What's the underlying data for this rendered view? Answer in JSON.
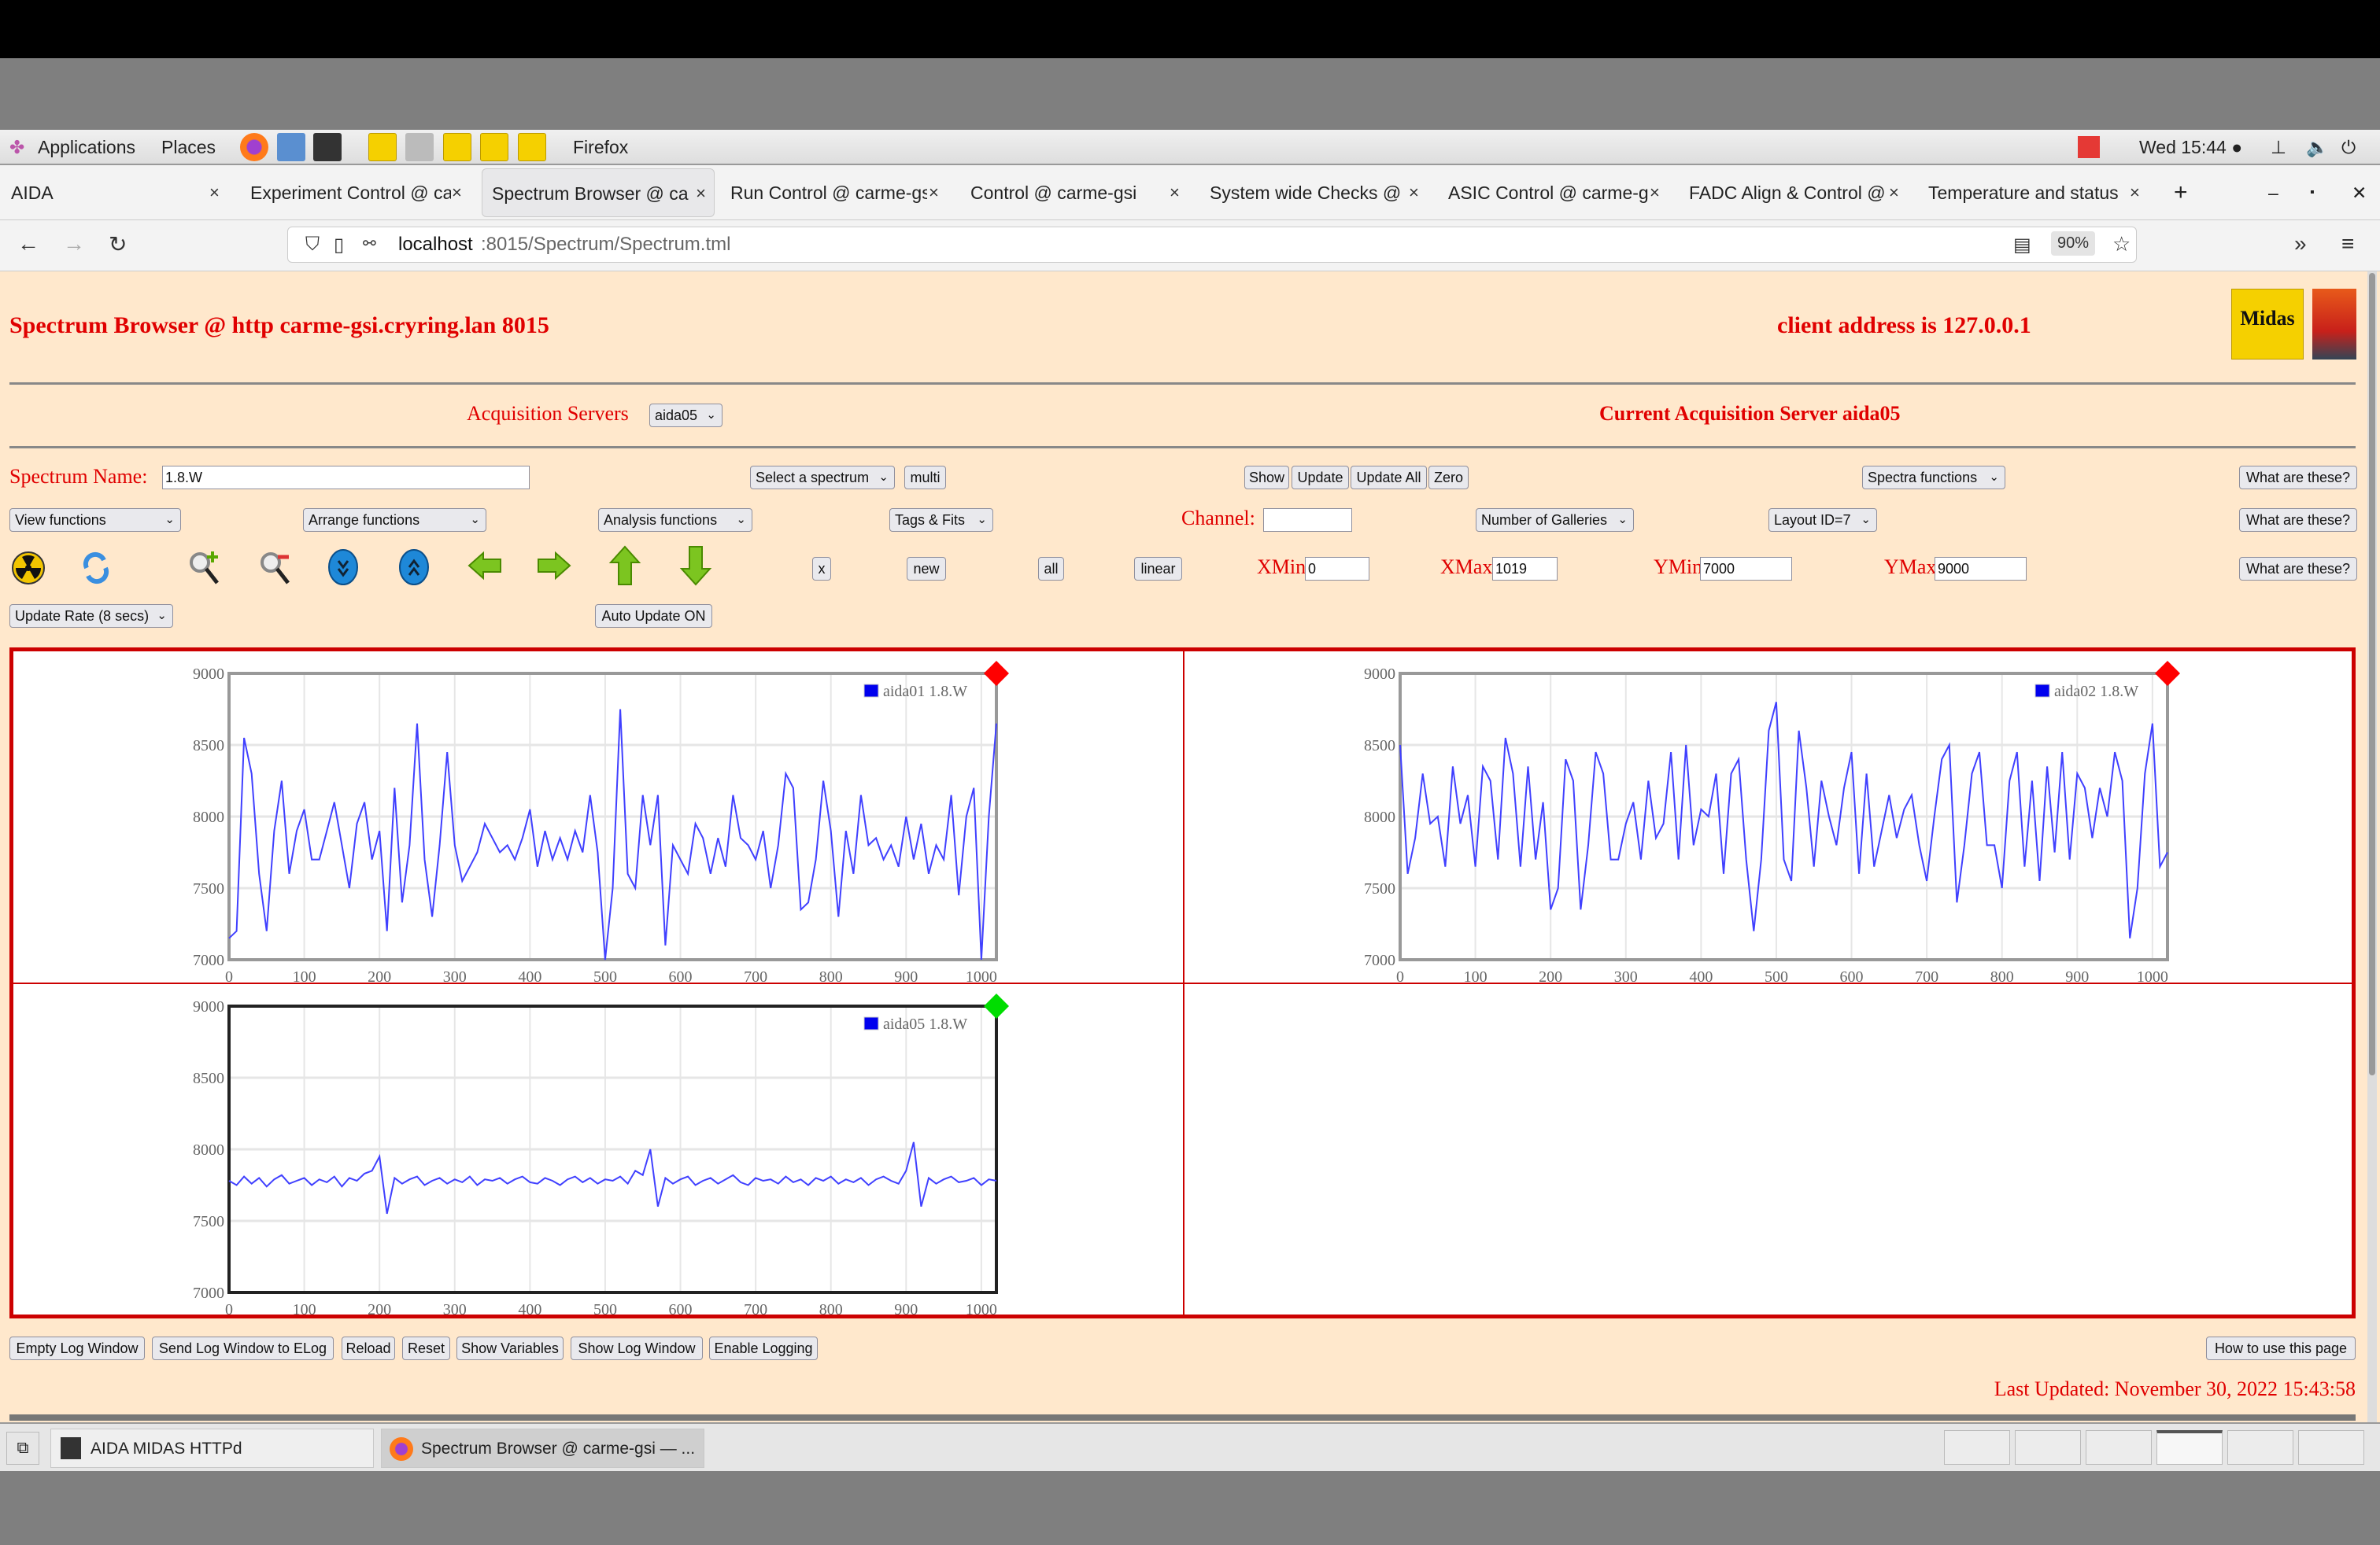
{
  "panel": {
    "applications": "Applications",
    "places": "Places",
    "active_app": "Firefox",
    "clock": "Wed 15:44 ●"
  },
  "tabs": [
    {
      "label": "AIDA",
      "active": false
    },
    {
      "label": "Experiment Control @ ca",
      "active": false
    },
    {
      "label": "Spectrum Browser @ ca",
      "active": true
    },
    {
      "label": "Run Control @ carme-gs",
      "active": false
    },
    {
      "label": "Control @ carme-gsi",
      "active": false
    },
    {
      "label": "System wide Checks @ c",
      "active": false
    },
    {
      "label": "ASIC Control @ carme-g",
      "active": false
    },
    {
      "label": "FADC Align & Control @",
      "active": false
    },
    {
      "label": "Temperature and status",
      "active": false
    }
  ],
  "tab_close": "×",
  "new_tab": "+",
  "url": {
    "host": "localhost",
    "path": ":8015/Spectrum/Spectrum.tml",
    "zoom": "90%"
  },
  "header": {
    "title": "Spectrum Browser @ http carme-gsi.cryring.lan 8015",
    "client": "client address is 127.0.0.1",
    "logo_text": "Midas"
  },
  "servers": {
    "label": "Acquisition Servers",
    "selected": "aida05",
    "current": "Current Acquisition Server aida05"
  },
  "row1": {
    "name_label": "Spectrum Name:",
    "name_value": "1.8.W",
    "select_spectrum": "Select a spectrum",
    "multi": "multi",
    "show": "Show",
    "update": "Update",
    "update_all": "Update All",
    "zero": "Zero",
    "spectra_functions": "Spectra functions",
    "help": "What are these?"
  },
  "row2": {
    "view": "View functions",
    "arrange": "Arrange functions",
    "analysis": "Analysis functions",
    "tags": "Tags & Fits",
    "channel_label": "Channel:",
    "channel_value": "",
    "galleries": "Number of Galleries",
    "layout": "Layout ID=7",
    "help": "What are these?"
  },
  "row3": {
    "icons": [
      "radiation-icon",
      "refresh-icon",
      "zoom-in-icon",
      "zoom-out-icon",
      "expand-down-icon",
      "expand-up-icon",
      "arrow-left-icon",
      "arrow-right-icon",
      "arrow-up-icon",
      "arrow-down-icon"
    ],
    "x": "x",
    "new": "new",
    "all": "all",
    "scale": "linear",
    "xmin_label": "XMin",
    "xmin": "0",
    "xmax_label": "XMax",
    "xmax": "1019",
    "ymin_label": "YMin",
    "ymin": "7000",
    "ymax_label": "YMax",
    "ymax": "9000",
    "help": "What are these?"
  },
  "row4": {
    "update_rate": "Update Rate (8 secs)",
    "auto_update": "Auto Update ON"
  },
  "chart_data": [
    {
      "type": "line",
      "legend": "aida01 1.8.W",
      "legend_placement": "top-right",
      "status_color": "#ff0000",
      "xlim": [
        0,
        1020
      ],
      "ylim": [
        7000,
        9000
      ],
      "xticks": [
        "0",
        "100",
        "200",
        "300",
        "400",
        "500",
        "600",
        "700",
        "800",
        "900",
        "1000"
      ],
      "yticks": [
        "7000",
        "7500",
        "8000",
        "8500",
        "9000"
      ],
      "grid": true,
      "x_step": 10,
      "values": [
        7150,
        7200,
        8550,
        8300,
        7600,
        7200,
        7900,
        8250,
        7600,
        7900,
        8050,
        7700,
        7700,
        7900,
        8100,
        7800,
        7500,
        7950,
        8100,
        7700,
        7900,
        7200,
        8200,
        7400,
        7800,
        8650,
        7700,
        7300,
        7800,
        8450,
        7800,
        7550,
        7650,
        7750,
        7950,
        7850,
        7750,
        7800,
        7700,
        7850,
        8050,
        7650,
        7900,
        7700,
        7850,
        7700,
        7900,
        7750,
        8150,
        7750,
        7000,
        7500,
        8750,
        7600,
        7500,
        8150,
        7800,
        8150,
        7100,
        7800,
        7700,
        7600,
        7950,
        7850,
        7600,
        7850,
        7650,
        8150,
        7850,
        7800,
        7700,
        7900,
        7500,
        7800,
        8300,
        8200,
        7350,
        7400,
        7700,
        8250,
        7900,
        7300,
        7900,
        7600,
        8150,
        7800,
        7850,
        7700,
        7800,
        7650,
        8000,
        7700,
        7950,
        7600,
        7800,
        7700,
        8150,
        7450,
        8000,
        8200,
        7000,
        8000,
        8650
      ]
    },
    {
      "type": "line",
      "legend": "aida02 1.8.W",
      "legend_placement": "top-right",
      "status_color": "#ff0000",
      "xlim": [
        0,
        1020
      ],
      "ylim": [
        7000,
        9000
      ],
      "xticks": [
        "0",
        "100",
        "200",
        "300",
        "400",
        "500",
        "600",
        "700",
        "800",
        "900",
        "1000"
      ],
      "yticks": [
        "7000",
        "7500",
        "8000",
        "8500",
        "9000"
      ],
      "grid": true,
      "x_step": 10,
      "values": [
        8500,
        7600,
        7850,
        8300,
        7950,
        8000,
        7650,
        8350,
        7950,
        8150,
        7650,
        8350,
        8250,
        7700,
        8550,
        8300,
        7650,
        8350,
        7700,
        8100,
        7350,
        7500,
        8400,
        8250,
        7350,
        7800,
        8450,
        8300,
        7700,
        7700,
        7950,
        8100,
        7700,
        8250,
        7850,
        7950,
        8450,
        7700,
        8500,
        7800,
        8050,
        8000,
        8300,
        7600,
        8300,
        8400,
        7700,
        7200,
        7700,
        8600,
        8800,
        7700,
        7550,
        8600,
        8200,
        7650,
        8250,
        8000,
        7800,
        8200,
        8450,
        7600,
        8300,
        7650,
        7900,
        8150,
        7850,
        8050,
        8150,
        7800,
        7550,
        8000,
        8400,
        8500,
        7400,
        7800,
        8300,
        8450,
        7800,
        7800,
        7500,
        8250,
        8450,
        7650,
        8250,
        7550,
        8350,
        7750,
        8450,
        7700,
        8300,
        8200,
        7850,
        8200,
        8000,
        8450,
        8250,
        7150,
        7500,
        8300,
        8650,
        7650,
        7750
      ]
    },
    {
      "type": "line",
      "legend": "aida05 1.8.W",
      "legend_placement": "top-right",
      "status_color": "#00dd00",
      "xlim": [
        0,
        1020
      ],
      "ylim": [
        7000,
        9000
      ],
      "xticks": [
        "0",
        "100",
        "200",
        "300",
        "400",
        "500",
        "600",
        "700",
        "800",
        "900",
        "1000"
      ],
      "yticks": [
        "7000",
        "7500",
        "8000",
        "8500",
        "9000"
      ],
      "grid": true,
      "x_step": 10,
      "values": [
        7780,
        7750,
        7810,
        7760,
        7800,
        7740,
        7790,
        7820,
        7760,
        7780,
        7800,
        7750,
        7790,
        7770,
        7810,
        7740,
        7800,
        7780,
        7830,
        7850,
        7950,
        7550,
        7800,
        7760,
        7790,
        7810,
        7750,
        7780,
        7800,
        7760,
        7790,
        7770,
        7810,
        7750,
        7790,
        7780,
        7800,
        7760,
        7790,
        7810,
        7770,
        7760,
        7800,
        7780,
        7750,
        7790,
        7810,
        7770,
        7800,
        7760,
        7790,
        7780,
        7810,
        7760,
        7850,
        7820,
        8000,
        7600,
        7800,
        7760,
        7790,
        7810,
        7750,
        7780,
        7800,
        7760,
        7790,
        7820,
        7770,
        7750,
        7800,
        7780,
        7790,
        7760,
        7810,
        7770,
        7790,
        7750,
        7800,
        7780,
        7810,
        7760,
        7790,
        7770,
        7800,
        7750,
        7790,
        7810,
        7780,
        7760,
        7850,
        8050,
        7600,
        7800,
        7760,
        7790,
        7810,
        7770,
        7780,
        7800,
        7750,
        7790,
        7780
      ]
    }
  ],
  "footer": {
    "buttons": [
      "Empty Log Window",
      "Send Log Window to ELog",
      "Reload",
      "Reset",
      "Show Variables",
      "Show Log Window",
      "Enable Logging"
    ],
    "howto": "How to use this page",
    "last_updated": "Last Updated: November 30, 2022 15:43:58"
  },
  "taskbar": {
    "items": [
      "AIDA MIDAS HTTPd",
      "Spectrum Browser @ carme-gsi — ..."
    ]
  }
}
